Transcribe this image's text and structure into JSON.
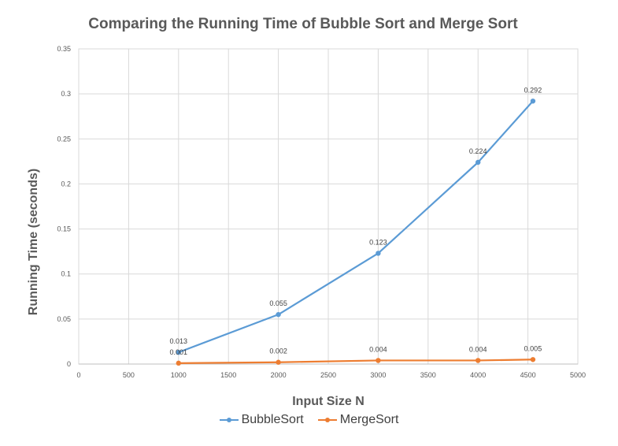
{
  "chart_data": {
    "type": "line",
    "title": "Comparing the Running Time of Bubble Sort and Merge Sort",
    "xlabel": "Input Size N",
    "ylabel": "Running Time (seconds)",
    "xlim": [
      0,
      5000
    ],
    "ylim": [
      0,
      0.35
    ],
    "x_ticks": [
      "0",
      "500",
      "1000",
      "1500",
      "2000",
      "2500",
      "3000",
      "3500",
      "4000",
      "4500",
      "5000"
    ],
    "y_ticks": [
      "0",
      "0.05",
      "0.1",
      "0.15",
      "0.2",
      "0.25",
      "0.3",
      "0.35"
    ],
    "grid": true,
    "legend_position": "bottom",
    "series": [
      {
        "name": "BubbleSort",
        "color": "#5B9BD5",
        "x": [
          1000,
          2000,
          3000,
          4000,
          4550
        ],
        "values": [
          0.013,
          0.055,
          0.123,
          0.224,
          0.292
        ],
        "labels": [
          "0.013",
          "0.055",
          "0.123",
          "0.224",
          "0.292"
        ]
      },
      {
        "name": "MergeSort",
        "color": "#ED7D31",
        "x": [
          1000,
          2000,
          3000,
          4000,
          4550
        ],
        "values": [
          0.001,
          0.002,
          0.004,
          0.004,
          0.005
        ],
        "labels": [
          "0.001",
          "0.002",
          "0.004",
          "0.004",
          "0.005"
        ]
      }
    ]
  }
}
